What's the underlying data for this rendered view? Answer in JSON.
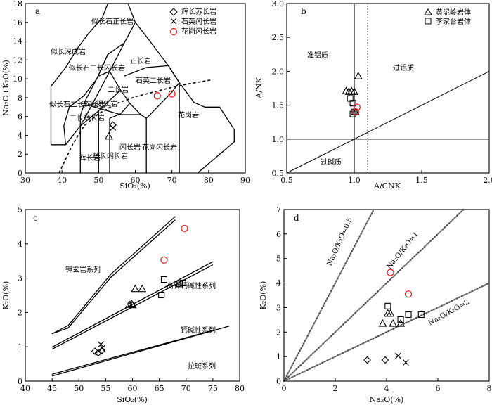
{
  "colors": {
    "red": "#e0201e",
    "black": "#000000"
  },
  "chart_data": [
    {
      "panel": "a",
      "type": "scatter",
      "xlabel": "SiO₂(%)",
      "ylabel": "Na₂O+K₂O(%)",
      "xlim": [
        30,
        90
      ],
      "ylim": [
        0,
        18
      ],
      "xticks": [
        30,
        40,
        50,
        60,
        70,
        80,
        90
      ],
      "yticks": [
        0,
        2,
        4,
        6,
        8,
        10,
        12,
        14,
        16,
        18
      ],
      "legend": [
        "辉长苏长岩",
        "石英闪长岩",
        "花岗闪长岩"
      ],
      "field_labels": [
        "似长深成岩",
        "似长石正长岩",
        "正长岩",
        "似长石二长闪长岩",
        "二长岩",
        "石英二长岩",
        "似长石二长辉长岩",
        "二长闪长岩",
        "二长辉长岩",
        "辉长岩",
        "闪长岩",
        "辉长闪长岩",
        "花岗闪长岩",
        "花岗岩"
      ],
      "series": [
        {
          "name": "辉长苏长岩",
          "marker": "diamond",
          "points": [
            [
              53.9,
              5.1
            ]
          ]
        },
        {
          "name": "石英闪长岩",
          "marker": "x",
          "points": [
            [
              53.9,
              4.8
            ]
          ]
        },
        {
          "name": "花岗闪长岩",
          "marker": "circle",
          "points": [
            [
              66.0,
              8.2
            ],
            [
              70.0,
              8.4
            ]
          ]
        }
      ],
      "extra_points": [
        {
          "marker": "triangle",
          "points": [
            [
              52.8,
              3.9
            ]
          ]
        }
      ]
    },
    {
      "panel": "b",
      "type": "scatter",
      "xlabel": "A/CNK",
      "ylabel": "A/NK",
      "xlim": [
        0.5,
        2.0
      ],
      "ylim": [
        0.5,
        3.0
      ],
      "xticks": [
        0.5,
        1.0,
        1.5,
        2.0
      ],
      "yticks": [
        0.5,
        1.0,
        1.5,
        2.0,
        2.5,
        3.0
      ],
      "legend": [
        "黄泥岭岩体",
        "李家台岩体"
      ],
      "field_labels": [
        "准铝质",
        "过铝质",
        "过碱质"
      ],
      "series": [
        {
          "name": "黄泥岭岩体",
          "marker": "triangle",
          "points": [
            [
              0.94,
              1.71
            ],
            [
              0.96,
              1.7
            ],
            [
              0.98,
              1.71
            ],
            [
              1.0,
              1.7
            ],
            [
              1.03,
              1.93
            ],
            [
              1.01,
              1.4
            ]
          ]
        },
        {
          "name": "李家台岩体",
          "marker": "square",
          "points": [
            [
              0.97,
              1.6
            ],
            [
              0.99,
              1.53
            ],
            [
              1.0,
              1.4
            ],
            [
              0.99,
              1.37
            ]
          ]
        }
      ],
      "extra_points": [
        {
          "marker": "circle",
          "points": [
            [
              1.02,
              1.47
            ],
            [
              1.01,
              1.4
            ]
          ]
        }
      ]
    },
    {
      "panel": "c",
      "type": "scatter",
      "xlabel": "SiO₂(%)",
      "ylabel": "K₂O(%)",
      "xlim": [
        40,
        80
      ],
      "ylim": [
        0,
        5
      ],
      "xticks": [
        40,
        45,
        50,
        55,
        60,
        65,
        70,
        75,
        80
      ],
      "yticks": [
        0,
        1,
        2,
        3,
        4,
        5
      ],
      "field_labels": [
        "钾玄岩系列",
        "高钾钙碱性系列",
        "钙碱性系列",
        "拉斑系列"
      ],
      "series": [
        {
          "marker": "diamond",
          "points": [
            [
              53.0,
              0.87
            ],
            [
              53.6,
              0.82
            ],
            [
              54.2,
              0.88
            ]
          ]
        },
        {
          "marker": "x",
          "points": [
            [
              54.1,
              1.07
            ],
            [
              54.4,
              0.97
            ]
          ]
        },
        {
          "marker": "triangle",
          "points": [
            [
              59.4,
              2.23
            ],
            [
              59.8,
              2.26
            ],
            [
              60.0,
              2.22
            ],
            [
              60.5,
              2.69
            ],
            [
              61.8,
              2.69
            ]
          ]
        },
        {
          "marker": "square",
          "points": [
            [
              65.4,
              2.51
            ],
            [
              65.9,
              2.96
            ],
            [
              68.8,
              2.83
            ],
            [
              69.4,
              2.86
            ]
          ]
        },
        {
          "marker": "circle",
          "points": [
            [
              65.9,
              3.53
            ],
            [
              69.7,
              4.45
            ]
          ]
        }
      ]
    },
    {
      "panel": "d",
      "type": "scatter",
      "xlabel": "Na₂O(%)",
      "ylabel": "K₂O(%)",
      "xlim": [
        0,
        8
      ],
      "ylim": [
        0,
        7
      ],
      "xticks": [
        0,
        2,
        4,
        6,
        8
      ],
      "yticks": [
        0,
        1,
        2,
        3,
        4,
        5,
        6,
        7
      ],
      "ratio_lines": [
        "Na₂O/K₂O=0.5",
        "Na₂O/K₂O=1",
        "Na₂O/K₂O=2"
      ],
      "series": [
        {
          "marker": "diamond",
          "points": [
            [
              3.25,
              0.86
            ],
            [
              3.95,
              0.86
            ]
          ]
        },
        {
          "marker": "x",
          "points": [
            [
              4.45,
              1.03
            ],
            [
              4.75,
              0.76
            ]
          ]
        },
        {
          "marker": "triangle",
          "points": [
            [
              3.85,
              2.35
            ],
            [
              4.05,
              2.76
            ],
            [
              4.15,
              2.76
            ],
            [
              4.25,
              2.35
            ],
            [
              4.55,
              2.35
            ]
          ]
        },
        {
          "marker": "square",
          "points": [
            [
              4.05,
              3.06
            ],
            [
              4.55,
              2.51
            ],
            [
              4.85,
              2.71
            ],
            [
              5.35,
              2.71
            ]
          ]
        },
        {
          "marker": "circle",
          "points": [
            [
              4.15,
              4.43
            ],
            [
              4.85,
              3.55
            ]
          ]
        }
      ]
    }
  ]
}
